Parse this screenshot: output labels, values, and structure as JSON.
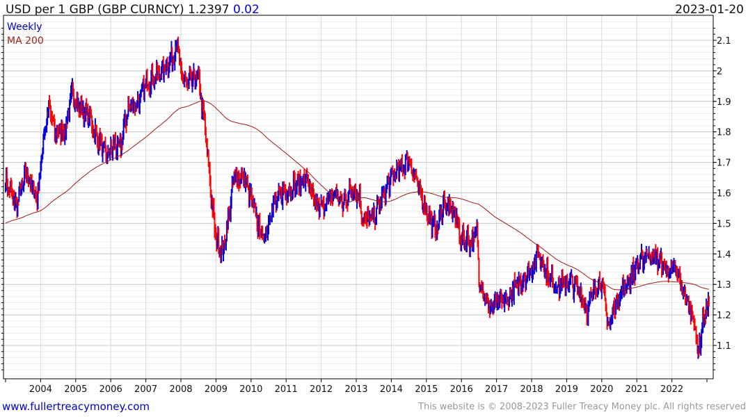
{
  "header": {
    "title": "USD per 1 GBP (GBP CURNCY) 1.2397",
    "change": "0.02",
    "date": "2023-01-20"
  },
  "legend": {
    "series1": "Weekly",
    "series2": "MA 200"
  },
  "footer": {
    "site": "www.fullertreacymoney.com",
    "copyright": "This website is © 2008-2023 Fuller Treacy Money plc. All rights reserved"
  },
  "colors": {
    "up": "#0000dd",
    "down": "#ff0000",
    "ma": "#a01818",
    "grid": "#d8d8d8"
  },
  "chart_data": {
    "type": "line",
    "title": "USD per 1 GBP (GBP CURNCY)",
    "frequency": "weekly",
    "xlim": [
      2003.0,
      2023.15
    ],
    "ylim": [
      0.99,
      2.18
    ],
    "x_ticks": [
      "2004",
      "2005",
      "2006",
      "2007",
      "2008",
      "2009",
      "2010",
      "2011",
      "2012",
      "2013",
      "2014",
      "2015",
      "2016",
      "2017",
      "2018",
      "2019",
      "2020",
      "2021",
      "2022"
    ],
    "y_ticks": [
      "1.1",
      "1.2",
      "1.3",
      "1.4",
      "1.5",
      "1.6",
      "1.7",
      "1.8",
      "1.9",
      "2",
      "2.1"
    ],
    "grid": true,
    "legend_position": "top-left",
    "price_path": [
      [
        2003.0,
        1.64
      ],
      [
        2003.3,
        1.56
      ],
      [
        2003.6,
        1.66
      ],
      [
        2003.9,
        1.58
      ],
      [
        2004.1,
        1.8
      ],
      [
        2004.25,
        1.88
      ],
      [
        2004.4,
        1.8
      ],
      [
        2004.7,
        1.8
      ],
      [
        2004.9,
        1.93
      ],
      [
        2005.1,
        1.88
      ],
      [
        2005.4,
        1.85
      ],
      [
        2005.6,
        1.78
      ],
      [
        2005.9,
        1.72
      ],
      [
        2006.1,
        1.76
      ],
      [
        2006.25,
        1.74
      ],
      [
        2006.5,
        1.88
      ],
      [
        2006.8,
        1.9
      ],
      [
        2007.0,
        1.96
      ],
      [
        2007.3,
        1.98
      ],
      [
        2007.8,
        2.05
      ],
      [
        2007.9,
        2.1
      ],
      [
        2008.0,
        1.98
      ],
      [
        2008.2,
        1.96
      ],
      [
        2008.5,
        1.98
      ],
      [
        2008.7,
        1.8
      ],
      [
        2008.9,
        1.55
      ],
      [
        2009.0,
        1.45
      ],
      [
        2009.2,
        1.4
      ],
      [
        2009.4,
        1.55
      ],
      [
        2009.5,
        1.65
      ],
      [
        2009.8,
        1.65
      ],
      [
        2009.95,
        1.6
      ],
      [
        2010.2,
        1.5
      ],
      [
        2010.35,
        1.45
      ],
      [
        2010.6,
        1.55
      ],
      [
        2010.9,
        1.6
      ],
      [
        2011.3,
        1.63
      ],
      [
        2011.6,
        1.65
      ],
      [
        2011.8,
        1.56
      ],
      [
        2012.0,
        1.55
      ],
      [
        2012.4,
        1.6
      ],
      [
        2012.6,
        1.56
      ],
      [
        2012.9,
        1.62
      ],
      [
        2013.1,
        1.58
      ],
      [
        2013.2,
        1.51
      ],
      [
        2013.5,
        1.52
      ],
      [
        2013.7,
        1.57
      ],
      [
        2014.0,
        1.65
      ],
      [
        2014.5,
        1.71
      ],
      [
        2014.8,
        1.61
      ],
      [
        2015.1,
        1.51
      ],
      [
        2015.3,
        1.48
      ],
      [
        2015.5,
        1.57
      ],
      [
        2015.8,
        1.53
      ],
      [
        2016.0,
        1.45
      ],
      [
        2016.3,
        1.44
      ],
      [
        2016.45,
        1.47
      ],
      [
        2016.5,
        1.32
      ],
      [
        2016.8,
        1.22
      ],
      [
        2017.0,
        1.24
      ],
      [
        2017.3,
        1.25
      ],
      [
        2017.6,
        1.3
      ],
      [
        2017.9,
        1.33
      ],
      [
        2018.2,
        1.4
      ],
      [
        2018.5,
        1.32
      ],
      [
        2018.8,
        1.29
      ],
      [
        2019.1,
        1.31
      ],
      [
        2019.4,
        1.27
      ],
      [
        2019.6,
        1.21
      ],
      [
        2019.8,
        1.29
      ],
      [
        2020.0,
        1.31
      ],
      [
        2020.2,
        1.16
      ],
      [
        2020.4,
        1.24
      ],
      [
        2020.7,
        1.3
      ],
      [
        2021.0,
        1.36
      ],
      [
        2021.3,
        1.4
      ],
      [
        2021.6,
        1.38
      ],
      [
        2021.9,
        1.34
      ],
      [
        2022.1,
        1.35
      ],
      [
        2022.4,
        1.25
      ],
      [
        2022.6,
        1.2
      ],
      [
        2022.75,
        1.08
      ],
      [
        2022.9,
        1.18
      ],
      [
        2023.05,
        1.24
      ]
    ],
    "last_value": 1.2397,
    "ma_period": 200
  }
}
